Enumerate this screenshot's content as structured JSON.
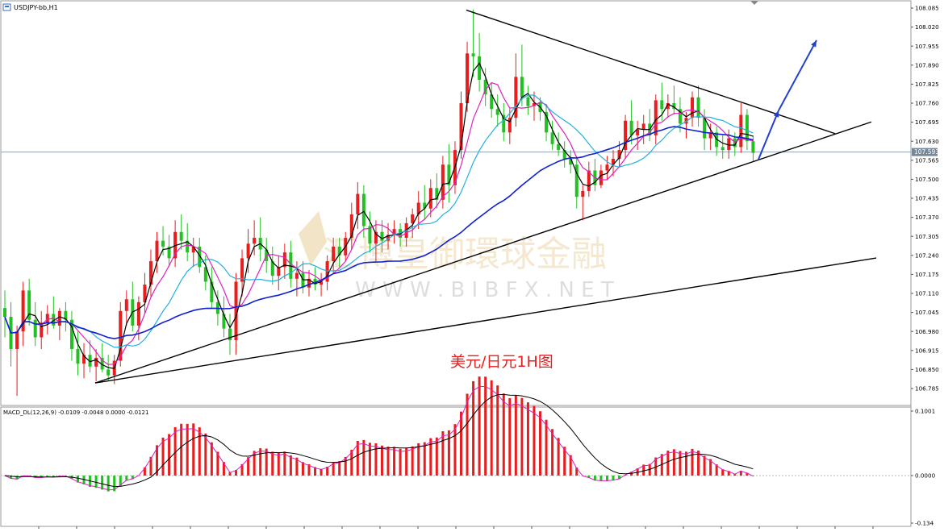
{
  "window": {
    "symbol_label": "USDJPY-bb,H1"
  },
  "annotation": {
    "caption": "美元/日元1H图",
    "watermark_cn": "汇博皇御環球金融",
    "watermark_url": "W W W . B I B F X . N E T"
  },
  "colors": {
    "bull": "#e81e1e",
    "bear": "#22c022",
    "ma_fast": "#000000",
    "ma_mid": "#e020c0",
    "ma_slow": "#20b0e0",
    "ma_long": "#1020d0",
    "trendline": "#000000",
    "arrow": "#2040d0",
    "caption": "#e81e1e",
    "price_tag_bg": "#778899",
    "price_line": "#8fa2b4"
  },
  "chart_data": [
    {
      "type": "candlestick",
      "symbol": "USDJPY-bb",
      "timeframe": "H1",
      "ylim": [
        106.75,
        108.11
      ],
      "y_ticks": [
        "108.085",
        "108.020",
        "107.955",
        "107.890",
        "107.825",
        "107.760",
        "107.695",
        "107.630",
        "107.565",
        "107.500",
        "107.435",
        "107.370",
        "107.305",
        "107.240",
        "107.175",
        "107.110",
        "107.045",
        "106.980",
        "106.915",
        "106.850",
        "106.785"
      ],
      "current_price": "107.593",
      "indicators": [
        "fast moving average (black)",
        "moving average (magenta)",
        "moving average (light blue)",
        "long moving average (blue)"
      ],
      "trendlines": [
        {
          "from": [
            118,
            106.804
          ],
          "to": [
            1080,
            107.696
          ]
        },
        {
          "from": [
            118,
            106.804
          ],
          "to": [
            1086,
            107.231
          ]
        },
        {
          "from": [
            578,
            108.078
          ],
          "to": [
            1035,
            107.656
          ]
        }
      ],
      "arrows": [
        {
          "from": [
            940,
            107.568
          ],
          "to": [
            965,
            107.735
          ]
        },
        {
          "from": [
            965,
            107.735
          ],
          "to": [
            1012,
            107.975
          ]
        }
      ],
      "candles": [
        {
          "o": 107.06,
          "h": 107.12,
          "l": 106.96,
          "c": 107.03
        },
        {
          "o": 107.03,
          "h": 107.08,
          "l": 106.86,
          "c": 106.92
        },
        {
          "o": 106.92,
          "h": 107.0,
          "l": 106.76,
          "c": 106.98
        },
        {
          "o": 106.98,
          "h": 107.15,
          "l": 106.93,
          "c": 107.12
        },
        {
          "o": 107.12,
          "h": 107.16,
          "l": 107.0,
          "c": 107.02
        },
        {
          "o": 107.02,
          "h": 107.08,
          "l": 106.93,
          "c": 106.96
        },
        {
          "o": 106.96,
          "h": 107.05,
          "l": 106.92,
          "c": 107.01
        },
        {
          "o": 107.01,
          "h": 107.07,
          "l": 106.97,
          "c": 107.04
        },
        {
          "o": 107.04,
          "h": 107.1,
          "l": 106.99,
          "c": 107.0
        },
        {
          "o": 107.0,
          "h": 107.06,
          "l": 106.95,
          "c": 107.05
        },
        {
          "o": 107.05,
          "h": 107.08,
          "l": 106.98,
          "c": 107.02
        },
        {
          "o": 107.02,
          "h": 107.05,
          "l": 106.88,
          "c": 106.92
        },
        {
          "o": 106.92,
          "h": 106.98,
          "l": 106.83,
          "c": 106.87
        },
        {
          "o": 106.87,
          "h": 106.94,
          "l": 106.82,
          "c": 106.9
        },
        {
          "o": 106.9,
          "h": 106.95,
          "l": 106.84,
          "c": 106.86
        },
        {
          "o": 106.86,
          "h": 106.92,
          "l": 106.81,
          "c": 106.89
        },
        {
          "o": 106.89,
          "h": 106.94,
          "l": 106.84,
          "c": 106.85
        },
        {
          "o": 106.85,
          "h": 106.9,
          "l": 106.81,
          "c": 106.83
        },
        {
          "o": 106.83,
          "h": 106.9,
          "l": 106.8,
          "c": 106.88
        },
        {
          "o": 106.88,
          "h": 107.08,
          "l": 106.86,
          "c": 107.05
        },
        {
          "o": 107.05,
          "h": 107.12,
          "l": 107.0,
          "c": 107.09
        },
        {
          "o": 107.09,
          "h": 107.15,
          "l": 106.98,
          "c": 107.0
        },
        {
          "o": 107.0,
          "h": 107.1,
          "l": 106.95,
          "c": 107.08
        },
        {
          "o": 107.08,
          "h": 107.18,
          "l": 107.04,
          "c": 107.14
        },
        {
          "o": 107.14,
          "h": 107.26,
          "l": 107.1,
          "c": 107.22
        },
        {
          "o": 107.22,
          "h": 107.32,
          "l": 107.18,
          "c": 107.29
        },
        {
          "o": 107.29,
          "h": 107.34,
          "l": 107.24,
          "c": 107.27
        },
        {
          "o": 107.27,
          "h": 107.31,
          "l": 107.2,
          "c": 107.23
        },
        {
          "o": 107.23,
          "h": 107.36,
          "l": 107.2,
          "c": 107.32
        },
        {
          "o": 107.32,
          "h": 107.38,
          "l": 107.26,
          "c": 107.29
        },
        {
          "o": 107.29,
          "h": 107.35,
          "l": 107.22,
          "c": 107.25
        },
        {
          "o": 107.25,
          "h": 107.3,
          "l": 107.2,
          "c": 107.27
        },
        {
          "o": 107.27,
          "h": 107.3,
          "l": 107.18,
          "c": 107.2
        },
        {
          "o": 107.2,
          "h": 107.24,
          "l": 107.12,
          "c": 107.15
        },
        {
          "o": 107.15,
          "h": 107.2,
          "l": 107.06,
          "c": 107.08
        },
        {
          "o": 107.08,
          "h": 107.12,
          "l": 107.0,
          "c": 107.04
        },
        {
          "o": 107.04,
          "h": 107.1,
          "l": 106.96,
          "c": 106.99
        },
        {
          "o": 106.99,
          "h": 107.04,
          "l": 106.9,
          "c": 106.95
        },
        {
          "o": 106.95,
          "h": 107.18,
          "l": 106.9,
          "c": 107.15
        },
        {
          "o": 107.15,
          "h": 107.26,
          "l": 107.1,
          "c": 107.23
        },
        {
          "o": 107.23,
          "h": 107.33,
          "l": 107.18,
          "c": 107.28
        },
        {
          "o": 107.28,
          "h": 107.36,
          "l": 107.24,
          "c": 107.3
        },
        {
          "o": 107.3,
          "h": 107.37,
          "l": 107.22,
          "c": 107.26
        },
        {
          "o": 107.26,
          "h": 107.3,
          "l": 107.18,
          "c": 107.22
        },
        {
          "o": 107.22,
          "h": 107.27,
          "l": 107.14,
          "c": 107.17
        },
        {
          "o": 107.17,
          "h": 107.24,
          "l": 107.12,
          "c": 107.2
        },
        {
          "o": 107.2,
          "h": 107.28,
          "l": 107.16,
          "c": 107.25
        },
        {
          "o": 107.25,
          "h": 107.29,
          "l": 107.13,
          "c": 107.16
        },
        {
          "o": 107.16,
          "h": 107.22,
          "l": 107.1,
          "c": 107.18
        },
        {
          "o": 107.18,
          "h": 107.22,
          "l": 107.11,
          "c": 107.13
        },
        {
          "o": 107.13,
          "h": 107.19,
          "l": 107.1,
          "c": 107.16
        },
        {
          "o": 107.16,
          "h": 107.2,
          "l": 107.12,
          "c": 107.14
        },
        {
          "o": 107.14,
          "h": 107.18,
          "l": 107.1,
          "c": 107.15
        },
        {
          "o": 107.15,
          "h": 107.24,
          "l": 107.12,
          "c": 107.22
        },
        {
          "o": 107.22,
          "h": 107.3,
          "l": 107.18,
          "c": 107.27
        },
        {
          "o": 107.27,
          "h": 107.3,
          "l": 107.2,
          "c": 107.24
        },
        {
          "o": 107.24,
          "h": 107.32,
          "l": 107.22,
          "c": 107.3
        },
        {
          "o": 107.3,
          "h": 107.42,
          "l": 107.26,
          "c": 107.38
        },
        {
          "o": 107.38,
          "h": 107.49,
          "l": 107.33,
          "c": 107.45
        },
        {
          "o": 107.45,
          "h": 107.48,
          "l": 107.3,
          "c": 107.34
        },
        {
          "o": 107.34,
          "h": 107.39,
          "l": 107.25,
          "c": 107.28
        },
        {
          "o": 107.28,
          "h": 107.36,
          "l": 107.22,
          "c": 107.32
        },
        {
          "o": 107.32,
          "h": 107.36,
          "l": 107.25,
          "c": 107.29
        },
        {
          "o": 107.29,
          "h": 107.35,
          "l": 107.26,
          "c": 107.31
        },
        {
          "o": 107.31,
          "h": 107.36,
          "l": 107.28,
          "c": 107.33
        },
        {
          "o": 107.33,
          "h": 107.35,
          "l": 107.27,
          "c": 107.3
        },
        {
          "o": 107.3,
          "h": 107.37,
          "l": 107.27,
          "c": 107.35
        },
        {
          "o": 107.35,
          "h": 107.4,
          "l": 107.3,
          "c": 107.38
        },
        {
          "o": 107.38,
          "h": 107.46,
          "l": 107.33,
          "c": 107.42
        },
        {
          "o": 107.42,
          "h": 107.48,
          "l": 107.36,
          "c": 107.4
        },
        {
          "o": 107.4,
          "h": 107.5,
          "l": 107.37,
          "c": 107.47
        },
        {
          "o": 107.47,
          "h": 107.52,
          "l": 107.4,
          "c": 107.43
        },
        {
          "o": 107.43,
          "h": 107.58,
          "l": 107.4,
          "c": 107.55
        },
        {
          "o": 107.55,
          "h": 107.62,
          "l": 107.42,
          "c": 107.48
        },
        {
          "o": 107.48,
          "h": 107.63,
          "l": 107.45,
          "c": 107.6
        },
        {
          "o": 107.6,
          "h": 107.8,
          "l": 107.57,
          "c": 107.76
        },
        {
          "o": 107.76,
          "h": 107.97,
          "l": 107.73,
          "c": 107.93
        },
        {
          "o": 107.93,
          "h": 108.08,
          "l": 107.85,
          "c": 107.92
        },
        {
          "o": 107.92,
          "h": 108.0,
          "l": 107.8,
          "c": 107.84
        },
        {
          "o": 107.84,
          "h": 107.88,
          "l": 107.75,
          "c": 107.79
        },
        {
          "o": 107.79,
          "h": 107.83,
          "l": 107.71,
          "c": 107.74
        },
        {
          "o": 107.74,
          "h": 107.79,
          "l": 107.68,
          "c": 107.72
        },
        {
          "o": 107.72,
          "h": 107.76,
          "l": 107.63,
          "c": 107.66
        },
        {
          "o": 107.66,
          "h": 107.74,
          "l": 107.62,
          "c": 107.71
        },
        {
          "o": 107.71,
          "h": 107.93,
          "l": 107.68,
          "c": 107.85
        },
        {
          "o": 107.85,
          "h": 107.96,
          "l": 107.75,
          "c": 107.78
        },
        {
          "o": 107.78,
          "h": 107.82,
          "l": 107.72,
          "c": 107.75
        },
        {
          "o": 107.75,
          "h": 107.8,
          "l": 107.7,
          "c": 107.76
        },
        {
          "o": 107.76,
          "h": 107.78,
          "l": 107.7,
          "c": 107.73
        },
        {
          "o": 107.73,
          "h": 107.75,
          "l": 107.63,
          "c": 107.66
        },
        {
          "o": 107.66,
          "h": 107.7,
          "l": 107.6,
          "c": 107.62
        },
        {
          "o": 107.62,
          "h": 107.66,
          "l": 107.58,
          "c": 107.6
        },
        {
          "o": 107.6,
          "h": 107.63,
          "l": 107.54,
          "c": 107.57
        },
        {
          "o": 107.57,
          "h": 107.6,
          "l": 107.52,
          "c": 107.55
        },
        {
          "o": 107.55,
          "h": 107.58,
          "l": 107.4,
          "c": 107.44
        },
        {
          "o": 107.44,
          "h": 107.48,
          "l": 107.36,
          "c": 107.46
        },
        {
          "o": 107.46,
          "h": 107.56,
          "l": 107.44,
          "c": 107.53
        },
        {
          "o": 107.53,
          "h": 107.57,
          "l": 107.46,
          "c": 107.48
        },
        {
          "o": 107.48,
          "h": 107.55,
          "l": 107.47,
          "c": 107.53
        },
        {
          "o": 107.53,
          "h": 107.58,
          "l": 107.5,
          "c": 107.55
        },
        {
          "o": 107.55,
          "h": 107.6,
          "l": 107.51,
          "c": 107.57
        },
        {
          "o": 107.57,
          "h": 107.63,
          "l": 107.54,
          "c": 107.6
        },
        {
          "o": 107.6,
          "h": 107.72,
          "l": 107.57,
          "c": 107.7
        },
        {
          "o": 107.7,
          "h": 107.77,
          "l": 107.62,
          "c": 107.65
        },
        {
          "o": 107.65,
          "h": 107.7,
          "l": 107.6,
          "c": 107.67
        },
        {
          "o": 107.67,
          "h": 107.72,
          "l": 107.62,
          "c": 107.69
        },
        {
          "o": 107.69,
          "h": 107.74,
          "l": 107.63,
          "c": 107.65
        },
        {
          "o": 107.65,
          "h": 107.79,
          "l": 107.62,
          "c": 107.77
        },
        {
          "o": 107.77,
          "h": 107.83,
          "l": 107.7,
          "c": 107.74
        },
        {
          "o": 107.74,
          "h": 107.79,
          "l": 107.71,
          "c": 107.76
        },
        {
          "o": 107.76,
          "h": 107.82,
          "l": 107.72,
          "c": 107.74
        },
        {
          "o": 107.74,
          "h": 107.78,
          "l": 107.66,
          "c": 107.69
        },
        {
          "o": 107.69,
          "h": 107.73,
          "l": 107.64,
          "c": 107.71
        },
        {
          "o": 107.71,
          "h": 107.8,
          "l": 107.68,
          "c": 107.78
        },
        {
          "o": 107.78,
          "h": 107.82,
          "l": 107.68,
          "c": 107.71
        },
        {
          "o": 107.71,
          "h": 107.74,
          "l": 107.6,
          "c": 107.64
        },
        {
          "o": 107.64,
          "h": 107.69,
          "l": 107.6,
          "c": 107.66
        },
        {
          "o": 107.66,
          "h": 107.68,
          "l": 107.58,
          "c": 107.61
        },
        {
          "o": 107.61,
          "h": 107.65,
          "l": 107.57,
          "c": 107.6
        },
        {
          "o": 107.6,
          "h": 107.67,
          "l": 107.57,
          "c": 107.64
        },
        {
          "o": 107.64,
          "h": 107.66,
          "l": 107.58,
          "c": 107.61
        },
        {
          "o": 107.61,
          "h": 107.76,
          "l": 107.59,
          "c": 107.72
        },
        {
          "o": 107.72,
          "h": 107.74,
          "l": 107.6,
          "c": 107.63
        },
        {
          "o": 107.63,
          "h": 107.65,
          "l": 107.56,
          "c": 107.59
        }
      ]
    },
    {
      "type": "histogram",
      "indicator": "MACD_DL",
      "label": "MACD_DL(12,26,9) -0.0109 -0.0048 0.0000 -0.0121",
      "ylim": [
        -0.134,
        0.1001
      ],
      "y_ticks": [
        "0.1001",
        "0.0000",
        "-0.134"
      ]
    }
  ]
}
